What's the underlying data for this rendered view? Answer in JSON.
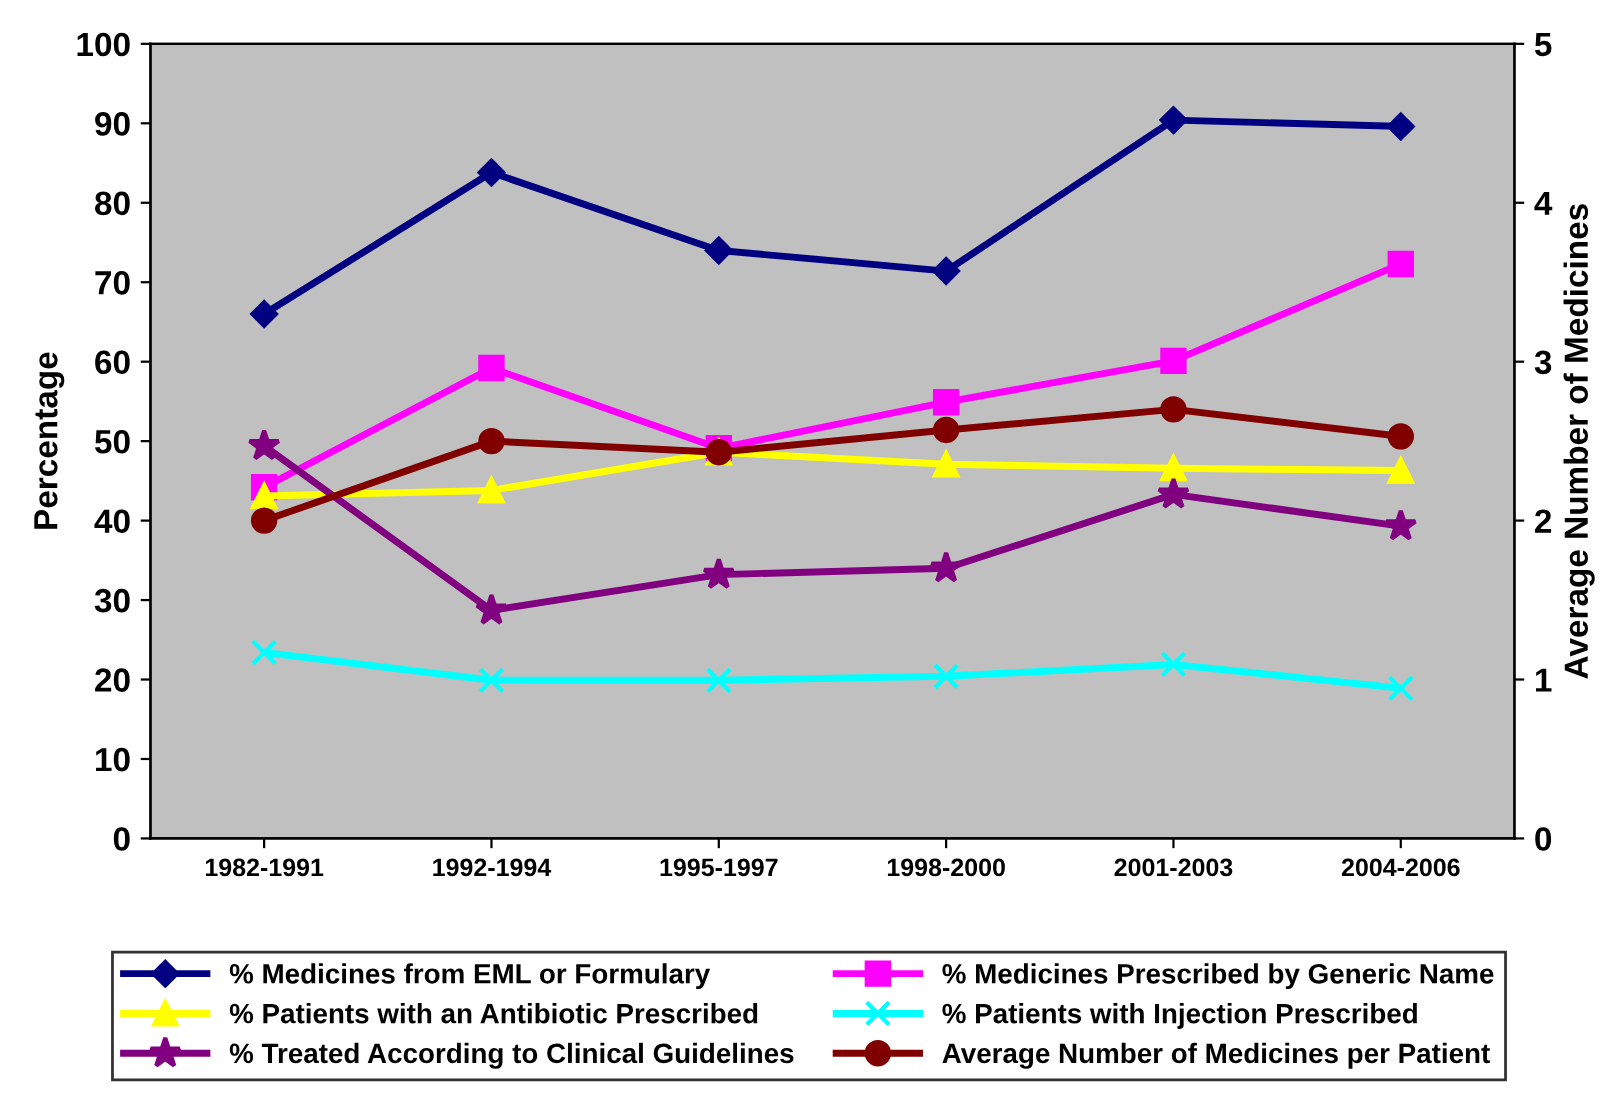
{
  "chart_data": {
    "type": "line",
    "ylabel": "Percentage",
    "y2label": "Average Number of Medicines",
    "categories": [
      "1982-1991",
      "1992-1994",
      "1995-1997",
      "1998-2000",
      "2001-2003",
      "2004-2006"
    ],
    "series": [
      {
        "name": "% Medicines from EML or Formulary",
        "color": "#000080",
        "marker": "diamond",
        "values": [
          66,
          83.8,
          74,
          71.4,
          90.4,
          89.6
        ]
      },
      {
        "name": "% Medicines Prescribed by Generic Name",
        "color": "#ff00ff",
        "marker": "square",
        "values": [
          44.2,
          59.2,
          49.1,
          54.9,
          60.1,
          72.3
        ]
      },
      {
        "name": "% Patients with an Antibiotic Prescribed",
        "color": "#ffff00",
        "marker": "triangle",
        "values": [
          43.1,
          43.8,
          48.6,
          47.1,
          46.6,
          46.3
        ]
      },
      {
        "name": "% Patients with Injection Prescribed",
        "color": "#00ffff",
        "marker": "cross",
        "values": [
          23.4,
          19.9,
          19.9,
          20.4,
          21.9,
          18.9
        ]
      },
      {
        "name": "% Treated According to Clinical Guidelines",
        "color": "#800080",
        "marker": "star",
        "values": [
          49.4,
          28.7,
          33.2,
          34,
          43.3,
          39.3
        ]
      },
      {
        "name": "Average Number of Medicines per Patient",
        "color": "#800000",
        "marker": "circle",
        "axis": "y2",
        "values": [
          2.0,
          2.5,
          2.43,
          2.57,
          2.7,
          2.53
        ]
      }
    ],
    "ylim": [
      0,
      100
    ],
    "yticks": [
      0,
      10,
      20,
      30,
      40,
      50,
      60,
      70,
      80,
      90,
      100
    ],
    "y2lim": [
      0,
      5
    ],
    "y2ticks": [
      0,
      1,
      2,
      3,
      4,
      5
    ],
    "grid": false,
    "legend": "bottom",
    "line_style": "solid"
  }
}
